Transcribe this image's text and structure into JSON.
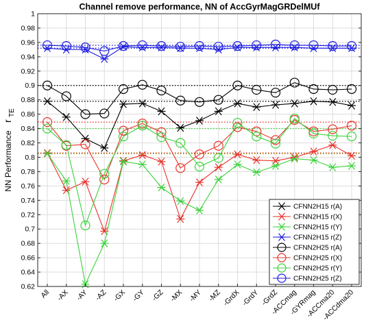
{
  "chart_data": {
    "type": "line",
    "title": "Channel remove performance, NN of AccGyrMagGRDelMUf",
    "ylabel": "NN Performance",
    "ylabel_symbol": "r",
    "ylabel_subscript": "TE",
    "xlabel": "",
    "ylim": [
      0.62,
      1.0
    ],
    "yticks": [
      0.62,
      0.64,
      0.66,
      0.68,
      0.7,
      0.72,
      0.74,
      0.76,
      0.78,
      0.8,
      0.82,
      0.84,
      0.86,
      0.88,
      0.9,
      0.92,
      0.94,
      0.96,
      0.98,
      1.0
    ],
    "ytick_labels": [
      "0.62",
      "0.64",
      "0.66",
      "0.68",
      "0.7",
      "0.72",
      "0.74",
      "0.76",
      "0.78",
      "0.8",
      "0.82",
      "0.84",
      "0.86",
      "0.88",
      "0.9",
      "0.92",
      "0.94",
      "0.96",
      "0.98",
      "1"
    ],
    "grid": true,
    "legend_position": "bottom-right",
    "categories": [
      "All",
      "-AX",
      "-AY",
      "-AZ",
      "-GX",
      "-GY",
      "-GZ",
      "-MX",
      "-MY",
      "-MZ",
      "-GrdX",
      "-GrdY",
      "-GrdZ",
      "-ACCmag",
      "-GYRmag",
      "-ACCma20",
      "-ACCdma20"
    ],
    "series": [
      {
        "name": "CFNN2H15 r(A)",
        "color": "#000000",
        "marker": "star",
        "values": [
          0.878,
          0.856,
          0.826,
          0.813,
          0.874,
          0.875,
          0.864,
          0.841,
          0.851,
          0.864,
          0.875,
          0.87,
          0.873,
          0.875,
          0.878,
          0.877,
          0.872
        ]
      },
      {
        "name": "CFNN2H15 r(X)",
        "color": "#e8302a",
        "marker": "star",
        "values": [
          0.806,
          0.754,
          0.766,
          0.697,
          0.795,
          0.803,
          0.794,
          0.714,
          0.765,
          0.786,
          0.804,
          0.796,
          0.795,
          0.8,
          0.808,
          0.817,
          0.802
        ]
      },
      {
        "name": "CFNN2H15 r(Y)",
        "color": "#3ad13a",
        "marker": "star",
        "values": [
          0.805,
          0.767,
          0.623,
          0.68,
          0.794,
          0.79,
          0.758,
          0.739,
          0.726,
          0.769,
          0.79,
          0.779,
          0.788,
          0.798,
          0.796,
          0.786,
          0.788
        ]
      },
      {
        "name": "CFNN2H15 r(Z)",
        "color": "#1a1ae0",
        "marker": "star",
        "values": [
          0.952,
          0.95,
          0.95,
          0.937,
          0.954,
          0.953,
          0.953,
          0.952,
          0.952,
          0.95,
          0.953,
          0.953,
          0.953,
          0.953,
          0.952,
          0.952,
          0.952
        ]
      },
      {
        "name": "CFNN2H25 r(A)",
        "color": "#000000",
        "marker": "circle",
        "values": [
          0.9,
          0.885,
          0.86,
          0.861,
          0.895,
          0.901,
          0.893,
          0.879,
          0.877,
          0.88,
          0.9,
          0.894,
          0.89,
          0.904,
          0.895,
          0.894,
          0.895
        ]
      },
      {
        "name": "CFNN2H25 r(X)",
        "color": "#e8302a",
        "marker": "circle",
        "values": [
          0.849,
          0.816,
          0.818,
          0.769,
          0.837,
          0.847,
          0.835,
          0.785,
          0.804,
          0.816,
          0.842,
          0.836,
          0.824,
          0.852,
          0.836,
          0.839,
          0.844
        ]
      },
      {
        "name": "CFNN2H25 r(Y)",
        "color": "#3ad13a",
        "marker": "circle",
        "values": [
          0.84,
          0.817,
          0.705,
          0.777,
          0.829,
          0.844,
          0.828,
          0.82,
          0.787,
          0.799,
          0.848,
          0.829,
          0.819,
          0.854,
          0.833,
          0.83,
          0.829
        ]
      },
      {
        "name": "CFNN2H25 r(Z)",
        "color": "#1a1ae0",
        "marker": "circle",
        "values": [
          0.956,
          0.955,
          0.953,
          0.948,
          0.955,
          0.956,
          0.955,
          0.954,
          0.955,
          0.954,
          0.955,
          0.956,
          0.957,
          0.956,
          0.956,
          0.955,
          0.955
        ]
      }
    ],
    "reference_lines": [
      {
        "color": "#000000",
        "value": 0.9
      },
      {
        "color": "#000000",
        "value": 0.878
      },
      {
        "color": "#e8302a",
        "value": 0.849
      },
      {
        "color": "#3ad13a",
        "value": 0.84
      },
      {
        "color": "#e8302a",
        "value": 0.806
      },
      {
        "color": "#8a8a00",
        "value": 0.805
      },
      {
        "color": "#1a1ae0",
        "value": 0.956
      },
      {
        "color": "#1a1ae0",
        "value": 0.952
      }
    ]
  }
}
